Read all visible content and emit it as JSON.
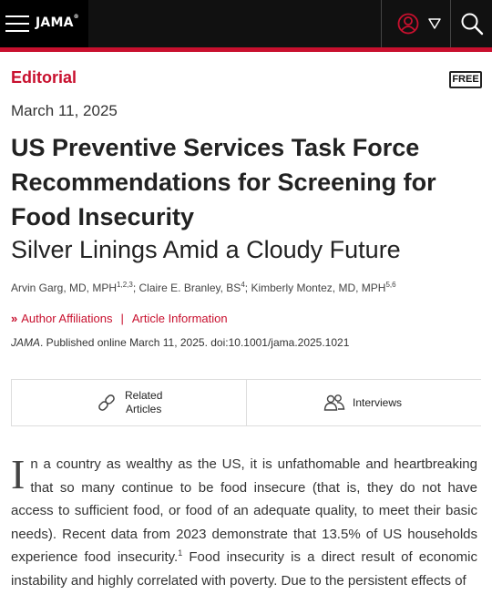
{
  "header": {
    "logo_text": "JAMA",
    "logo_mark": "®",
    "menu_icon": "hamburger-menu-icon",
    "user_icon": "user-account-icon",
    "caret_icon": "caret-down-icon",
    "search_icon": "search-icon",
    "accent_color": "#c8102e"
  },
  "article": {
    "section": "Editorial",
    "badge": "FREE",
    "date": "March 11, 2025",
    "title": "US Preventive Services Task Force Recommendations for Screening for Food Insecurity",
    "subtitle": "Silver Linings Amid a Cloudy Future",
    "authors": [
      {
        "name": "Arvin Garg, MD, MPH",
        "sup": "1,2,3",
        "sep": "; "
      },
      {
        "name": "Claire E. Branley, BS",
        "sup": "4",
        "sep": "; "
      },
      {
        "name": "Kimberly Montez, MD, MPH",
        "sup": "5,6",
        "sep": ""
      }
    ],
    "affiliations_link": "Author Affiliations",
    "divider": "|",
    "info_link": "Article Information",
    "citation_journal": "JAMA",
    "citation_rest": ". Published online March 11, 2025. doi:10.1001/jama.2025.1021"
  },
  "tabs": {
    "related_line1": "Related",
    "related_line2": "Articles",
    "interviews": "Interviews",
    "related_icon": "link-icon",
    "interviews_icon": "people-icon"
  },
  "body": {
    "dropcap": "I",
    "p1_part1": "n a country as wealthy as the US, it is unfathomable and heartbreaking that so many continue to be food insecure (that is, they do not have access to sufficient food, or food of an adequate quality, to meet their basic needs). Recent data from 2023 demonstrate that 13.5% of US households experience food insecurity.",
    "ref1": "1",
    "p1_part2": " Food insecurity is a direct result of economic instability and highly correlated with poverty. Due to the persistent effects of"
  }
}
